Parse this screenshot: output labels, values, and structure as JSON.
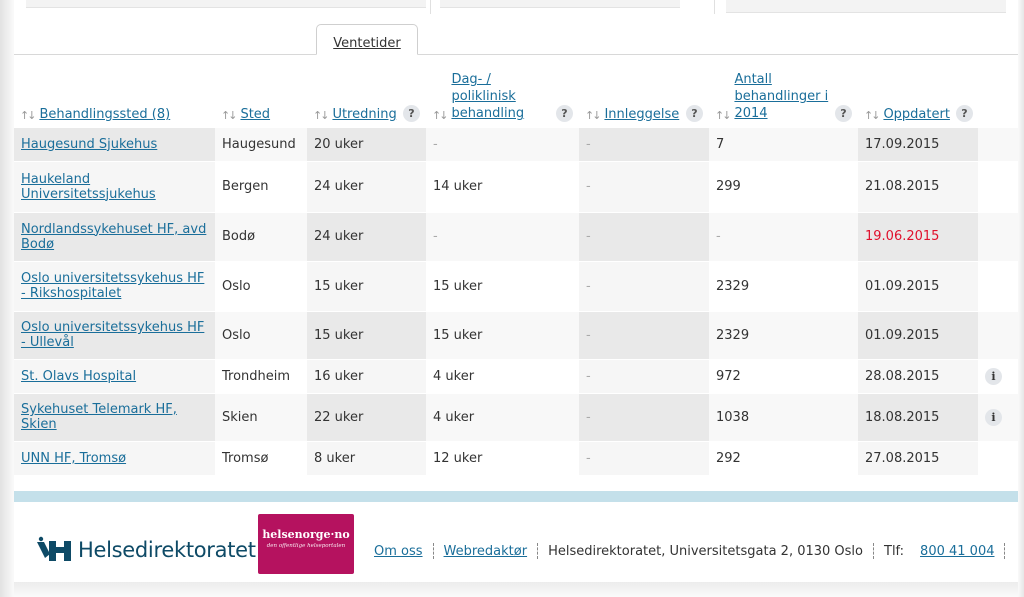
{
  "tab": {
    "label": "Ventetider"
  },
  "headers": {
    "behandlingssted": "Behandlingssted (8)",
    "sted": "Sted",
    "utredning": "Utredning",
    "dag_line1": "Dag- /",
    "dag_line2": "poliklinisk",
    "dag_line3": "behandling",
    "innleggelse": "Innleggelse",
    "antall_line1": "Antall",
    "antall_line2": "behandlinger i",
    "antall_line3": "2014",
    "oppdatert": "Oppdatert",
    "help": "?",
    "sort": "↑↓"
  },
  "rows": [
    {
      "name": "Haugesund Sjukehus",
      "sted": "Haugesund",
      "utredning": "20 uker",
      "dag": "-",
      "innleggelse": "-",
      "antall": "7",
      "oppdatert": "17.09.2015",
      "stale": false,
      "info": ""
    },
    {
      "name": "Haukeland Universitetssjukehus",
      "sted": "Bergen",
      "utredning": "24 uker",
      "dag": "14 uker",
      "innleggelse": "-",
      "antall": "299",
      "oppdatert": "21.08.2015",
      "stale": false,
      "info": ""
    },
    {
      "name": "Nordlandssykehuset HF, avd Bodø",
      "sted": "Bodø",
      "utredning": "24 uker",
      "dag": "-",
      "innleggelse": "-",
      "antall": "-",
      "oppdatert": "19.06.2015",
      "stale": true,
      "info": ""
    },
    {
      "name": "Oslo universitetssykehus HF - Rikshospitalet",
      "sted": "Oslo",
      "utredning": "15 uker",
      "dag": "15 uker",
      "innleggelse": "-",
      "antall": "2329",
      "oppdatert": "01.09.2015",
      "stale": false,
      "info": ""
    },
    {
      "name": "Oslo universitetssykehus HF - Ullevål",
      "sted": "Oslo",
      "utredning": "15 uker",
      "dag": "15 uker",
      "innleggelse": "-",
      "antall": "2329",
      "oppdatert": "01.09.2015",
      "stale": false,
      "info": ""
    },
    {
      "name": "St. Olavs Hospital",
      "sted": "Trondheim",
      "utredning": "16 uker",
      "dag": "4 uker",
      "innleggelse": "-",
      "antall": "972",
      "oppdatert": "28.08.2015",
      "stale": false,
      "info": "i"
    },
    {
      "name": "Sykehuset Telemark HF, Skien",
      "sted": "Skien",
      "utredning": "22 uker",
      "dag": "4 uker",
      "innleggelse": "-",
      "antall": "1038",
      "oppdatert": "18.08.2015",
      "stale": false,
      "info": "i"
    },
    {
      "name": "UNN HF, Tromsø",
      "sted": "Tromsø",
      "utredning": "8 uker",
      "dag": "12 uker",
      "innleggelse": "-",
      "antall": "292",
      "oppdatert": "27.08.2015",
      "stale": false,
      "info": ""
    }
  ],
  "footer": {
    "logo_text": "Helsedirektoratet",
    "hn_title": "helsenorge·no",
    "hn_sub": "den offentlige helseportalen",
    "om_oss": "Om oss",
    "webredaktor": "Webredaktør",
    "address": "Helsedirektoratet, Universitetsgata 2, 0130 Oslo",
    "tlf_label": "Tlf:",
    "tlf_number": "800 41 004"
  },
  "colors": {
    "link": "#1a6e9a",
    "stale_date": "#e0102c",
    "brand_dark": "#0e4a66",
    "helsenorge": "#b5125f",
    "blue_bar": "#c4e0ea"
  }
}
